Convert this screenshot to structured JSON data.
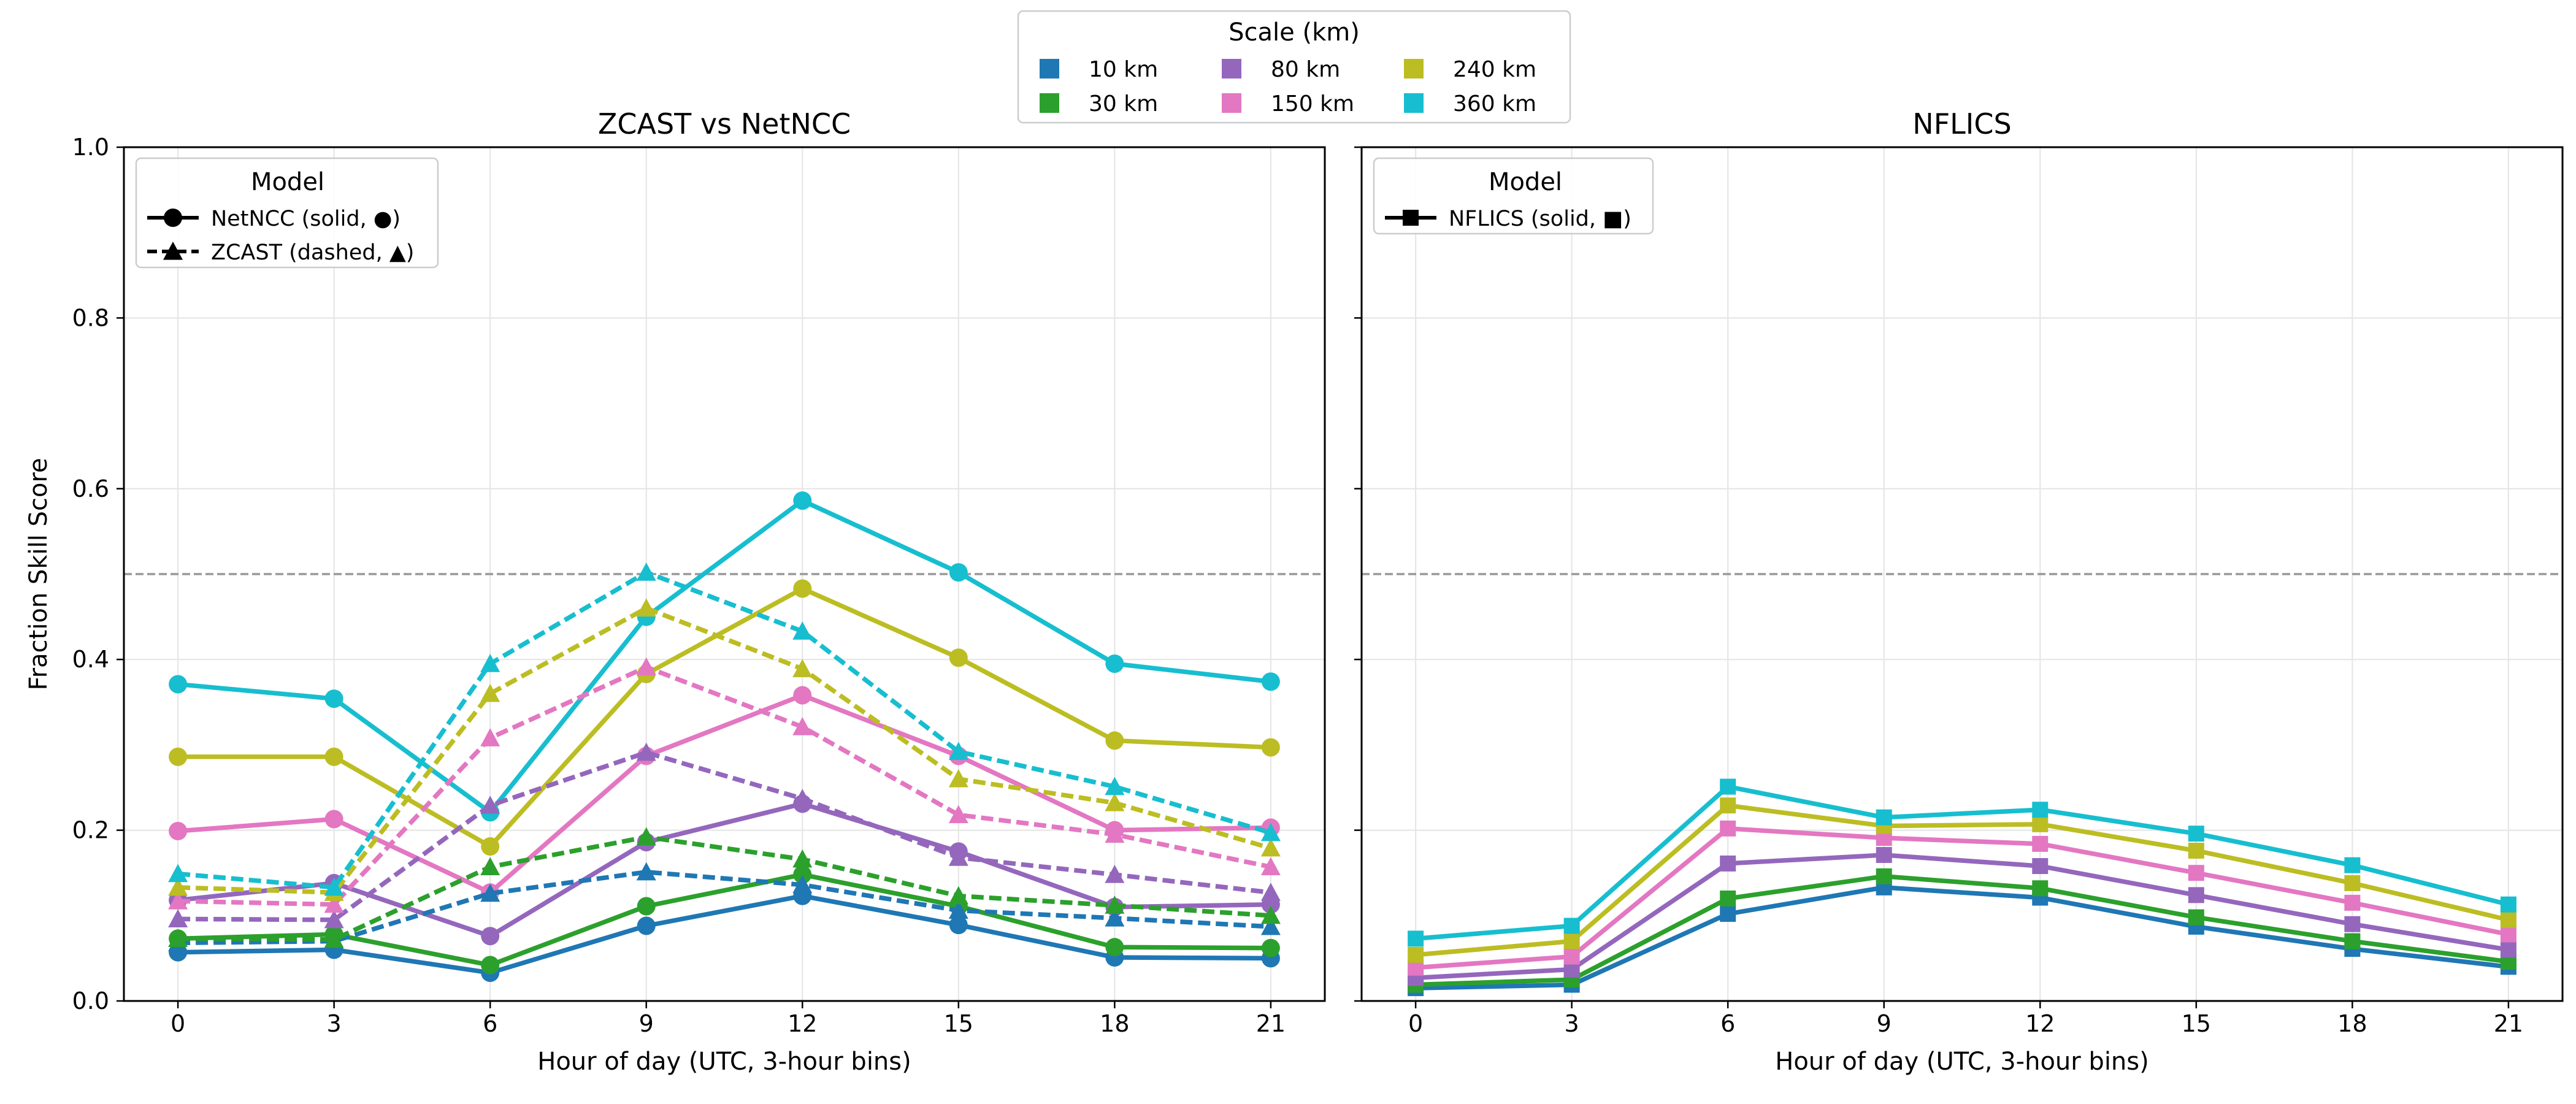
{
  "figure_legend": {
    "title": "Scale (km)",
    "entries": [
      {
        "label": "10 km",
        "color": "#1f77b4"
      },
      {
        "label": "30 km",
        "color": "#2ca02c"
      },
      {
        "label": "80 km",
        "color": "#9467bd"
      },
      {
        "label": "150 km",
        "color": "#e377c2"
      },
      {
        "label": "240 km",
        "color": "#bcbd22"
      },
      {
        "label": "360 km",
        "color": "#17becf"
      }
    ]
  },
  "chart_data": [
    {
      "type": "line",
      "title": "ZCAST vs NetNCC",
      "xlabel": "Hour of day (UTC, 3-hour bins)",
      "ylabel": "Fraction Skill Score",
      "x": [
        0,
        3,
        6,
        9,
        12,
        15,
        18,
        21
      ],
      "xticks": [
        "0",
        "3",
        "6",
        "9",
        "12",
        "15",
        "18",
        "21"
      ],
      "yticks": [
        "0.0",
        "0.2",
        "0.4",
        "0.6",
        "0.8",
        "1.0"
      ],
      "ylim": [
        0,
        1
      ],
      "grid": true,
      "reference_line": 0.5,
      "legend": {
        "title": "Model",
        "placement": "upper-left",
        "entries": [
          {
            "label": "NetNCC (solid, ●)",
            "style": "solid",
            "marker": "circle"
          },
          {
            "label": "ZCAST (dashed, ▲)",
            "style": "dashed",
            "marker": "triangle"
          }
        ]
      },
      "series": [
        {
          "model": "NetNCC",
          "scale": "10 km",
          "style": "solid",
          "marker": "circle",
          "color": "#1f77b4",
          "values": [
            0.057,
            0.06,
            0.033,
            0.088,
            0.123,
            0.089,
            0.051,
            0.05
          ]
        },
        {
          "model": "NetNCC",
          "scale": "30 km",
          "style": "solid",
          "marker": "circle",
          "color": "#2ca02c",
          "values": [
            0.073,
            0.078,
            0.042,
            0.111,
            0.148,
            0.111,
            0.063,
            0.062
          ]
        },
        {
          "model": "NetNCC",
          "scale": "80 km",
          "style": "solid",
          "marker": "circle",
          "color": "#9467bd",
          "values": [
            0.118,
            0.138,
            0.076,
            0.186,
            0.231,
            0.175,
            0.11,
            0.113
          ]
        },
        {
          "model": "NetNCC",
          "scale": "150 km",
          "style": "solid",
          "marker": "circle",
          "color": "#e377c2",
          "values": [
            0.199,
            0.213,
            0.127,
            0.287,
            0.358,
            0.287,
            0.2,
            0.203
          ]
        },
        {
          "model": "NetNCC",
          "scale": "240 km",
          "style": "solid",
          "marker": "circle",
          "color": "#bcbd22",
          "values": [
            0.286,
            0.286,
            0.181,
            0.383,
            0.483,
            0.402,
            0.305,
            0.297
          ]
        },
        {
          "model": "NetNCC",
          "scale": "360 km",
          "style": "solid",
          "marker": "circle",
          "color": "#17becf",
          "values": [
            0.371,
            0.354,
            0.221,
            0.45,
            0.586,
            0.502,
            0.395,
            0.374
          ]
        },
        {
          "model": "ZCAST",
          "scale": "10 km",
          "style": "dashed",
          "marker": "triangle",
          "color": "#1f77b4",
          "values": [
            0.068,
            0.07,
            0.126,
            0.151,
            0.136,
            0.106,
            0.097,
            0.087
          ]
        },
        {
          "model": "ZCAST",
          "scale": "30 km",
          "style": "dashed",
          "marker": "triangle",
          "color": "#2ca02c",
          "values": [
            0.073,
            0.072,
            0.157,
            0.192,
            0.166,
            0.123,
            0.112,
            0.1
          ]
        },
        {
          "model": "ZCAST",
          "scale": "80 km",
          "style": "dashed",
          "marker": "triangle",
          "color": "#9467bd",
          "values": [
            0.096,
            0.095,
            0.229,
            0.291,
            0.237,
            0.168,
            0.148,
            0.127
          ]
        },
        {
          "model": "ZCAST",
          "scale": "150 km",
          "style": "dashed",
          "marker": "triangle",
          "color": "#e377c2",
          "values": [
            0.117,
            0.113,
            0.308,
            0.391,
            0.321,
            0.218,
            0.195,
            0.157
          ]
        },
        {
          "model": "ZCAST",
          "scale": "240 km",
          "style": "dashed",
          "marker": "triangle",
          "color": "#bcbd22",
          "values": [
            0.133,
            0.127,
            0.36,
            0.46,
            0.389,
            0.26,
            0.232,
            0.179
          ]
        },
        {
          "model": "ZCAST",
          "scale": "360 km",
          "style": "dashed",
          "marker": "triangle",
          "color": "#17becf",
          "values": [
            0.149,
            0.133,
            0.395,
            0.502,
            0.433,
            0.292,
            0.251,
            0.197
          ]
        }
      ]
    },
    {
      "type": "line",
      "title": "NFLICS",
      "xlabel": "Hour of day (UTC, 3-hour bins)",
      "ylabel": "",
      "x": [
        0,
        3,
        6,
        9,
        12,
        15,
        18,
        21
      ],
      "xticks": [
        "0",
        "3",
        "6",
        "9",
        "12",
        "15",
        "18",
        "21"
      ],
      "ylim": [
        0,
        1
      ],
      "grid": true,
      "reference_line": 0.5,
      "legend": {
        "title": "Model",
        "placement": "upper-left",
        "entries": [
          {
            "label": "NFLICS (solid, ■)",
            "style": "solid",
            "marker": "square"
          }
        ]
      },
      "series": [
        {
          "model": "NFLICS",
          "scale": "10 km",
          "style": "solid",
          "marker": "square",
          "color": "#1f77b4",
          "values": [
            0.015,
            0.019,
            0.102,
            0.133,
            0.121,
            0.087,
            0.061,
            0.04
          ]
        },
        {
          "model": "NFLICS",
          "scale": "30 km",
          "style": "solid",
          "marker": "square",
          "color": "#2ca02c",
          "values": [
            0.019,
            0.025,
            0.12,
            0.146,
            0.132,
            0.098,
            0.07,
            0.046
          ]
        },
        {
          "model": "NFLICS",
          "scale": "80 km",
          "style": "solid",
          "marker": "square",
          "color": "#9467bd",
          "values": [
            0.027,
            0.037,
            0.161,
            0.171,
            0.158,
            0.124,
            0.09,
            0.06
          ]
        },
        {
          "model": "NFLICS",
          "scale": "150 km",
          "style": "solid",
          "marker": "square",
          "color": "#e377c2",
          "values": [
            0.039,
            0.052,
            0.202,
            0.191,
            0.184,
            0.15,
            0.115,
            0.078
          ]
        },
        {
          "model": "NFLICS",
          "scale": "240 km",
          "style": "solid",
          "marker": "square",
          "color": "#bcbd22",
          "values": [
            0.054,
            0.07,
            0.229,
            0.205,
            0.207,
            0.176,
            0.138,
            0.095
          ]
        },
        {
          "model": "NFLICS",
          "scale": "360 km",
          "style": "solid",
          "marker": "square",
          "color": "#17becf",
          "values": [
            0.073,
            0.088,
            0.251,
            0.215,
            0.224,
            0.196,
            0.159,
            0.113
          ]
        }
      ]
    }
  ]
}
